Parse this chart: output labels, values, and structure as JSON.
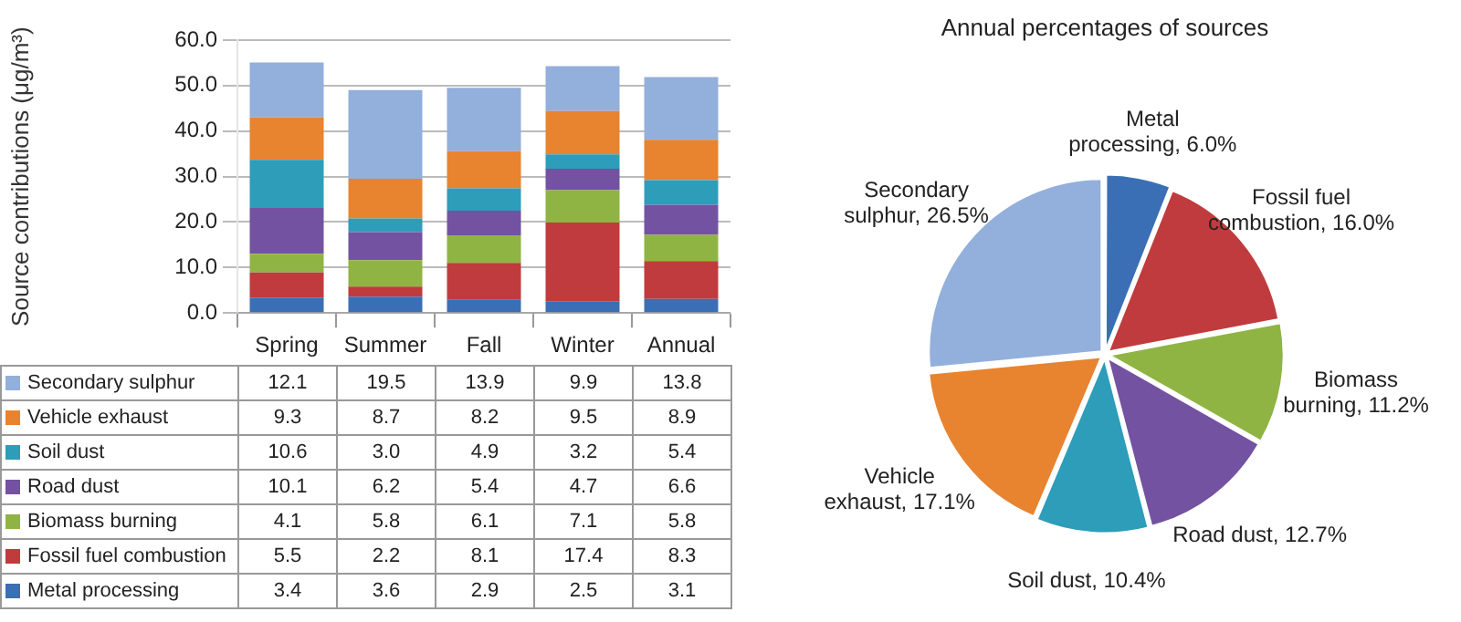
{
  "chart_data": [
    {
      "type": "bar",
      "stacked": true,
      "ylabel": "Source contributions (μg/m³)",
      "categories": [
        "Spring",
        "Summer",
        "Fall",
        "Winter",
        "Annual"
      ],
      "series": [
        {
          "name": "Metal processing",
          "color": "#3a6fb5",
          "values": [
            3.4,
            3.6,
            2.9,
            2.5,
            3.1
          ],
          "value_labels": [
            "3.4",
            "3.6",
            "2.9",
            "2.5",
            "3.1"
          ]
        },
        {
          "name": "Fossil fuel combustion",
          "color": "#c03b3d",
          "values": [
            5.5,
            2.2,
            8.1,
            17.4,
            8.3
          ],
          "value_labels": [
            "5.5",
            "2.2",
            "8.1",
            "17.4",
            "8.3"
          ]
        },
        {
          "name": "Biomass burning",
          "color": "#8fb443",
          "values": [
            4.1,
            5.8,
            6.1,
            7.1,
            5.8
          ],
          "value_labels": [
            "4.1",
            "5.8",
            "6.1",
            "7.1",
            "5.8"
          ]
        },
        {
          "name": "Road dust",
          "color": "#7352a1",
          "values": [
            10.1,
            6.2,
            5.4,
            4.7,
            6.6
          ],
          "value_labels": [
            "10.1",
            "6.2",
            "5.4",
            "4.7",
            "6.6"
          ]
        },
        {
          "name": "Soil dust",
          "color": "#2d9db9",
          "values": [
            10.6,
            3.0,
            4.9,
            3.2,
            5.4
          ],
          "value_labels": [
            "10.6",
            "3.0",
            "4.9",
            "3.2",
            "5.4"
          ]
        },
        {
          "name": "Vehicle exhaust",
          "color": "#e8832f",
          "values": [
            9.3,
            8.7,
            8.2,
            9.5,
            8.9
          ],
          "value_labels": [
            "9.3",
            "8.7",
            "8.2",
            "9.5",
            "8.9"
          ]
        },
        {
          "name": "Secondary sulphur",
          "color": "#93afdc",
          "values": [
            12.1,
            19.5,
            13.9,
            9.9,
            13.8
          ],
          "value_labels": [
            "12.1",
            "19.5",
            "13.9",
            "9.9",
            "13.8"
          ]
        }
      ],
      "ylim": [
        0,
        60
      ],
      "yticks": [
        {
          "value": 0,
          "label": "0.0"
        },
        {
          "value": 10,
          "label": "10.0"
        },
        {
          "value": 20,
          "label": "20.0"
        },
        {
          "value": 30,
          "label": "30.0"
        },
        {
          "value": 40,
          "label": "40.0"
        },
        {
          "value": 50,
          "label": "50.0"
        },
        {
          "value": 60,
          "label": "60.0"
        }
      ],
      "grid": "y",
      "legend": "bottom"
    },
    {
      "type": "pie",
      "title": "Annual percentages of sources",
      "categories": [
        "Metal processing",
        "Fossil fuel combustion",
        "Biomass burning",
        "Road dust",
        "Soil dust",
        "Vehicle exhaust",
        "Secondary sulphur"
      ],
      "values": [
        6.0,
        16.0,
        11.2,
        12.7,
        10.4,
        17.1,
        26.5
      ],
      "value_labels": [
        "6.0%",
        "16.0%",
        "11.2%",
        "12.7%",
        "10.4%",
        "17.1%",
        "26.5%"
      ],
      "colors": [
        "#3a6fb5",
        "#c03b3d",
        "#8fb443",
        "#7352a1",
        "#2d9db9",
        "#e8832f",
        "#93afdc"
      ]
    }
  ]
}
